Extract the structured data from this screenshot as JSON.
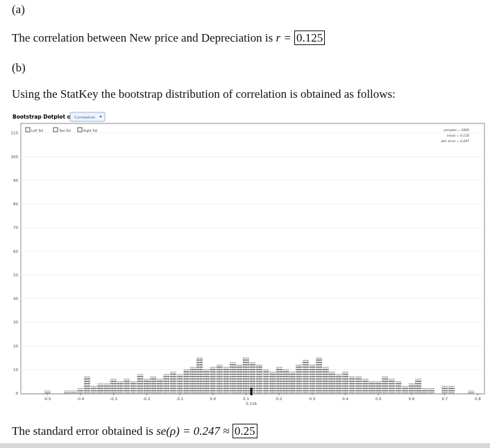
{
  "part_a": {
    "label": "(a)",
    "text": "The correlation between New price and Depreciation is",
    "symbol": "r =",
    "answer": "0.125"
  },
  "part_b": {
    "label": "(b)",
    "text": "Using the StatKey the bootstrap distribution of correlation is obtained as follows:"
  },
  "chart_data": {
    "type": "dotplot",
    "title": "Bootstrap Dotplot of",
    "dropdown": "Correlation",
    "tails": [
      "Left Tail",
      "Two-Tail",
      "Right Tail"
    ],
    "stats": [
      "samples = 1000",
      "mean = 0.116",
      "std. error = 0.247"
    ],
    "color": "#3a3a3a",
    "x": [
      -0.5,
      -0.48,
      -0.46,
      -0.44,
      -0.42,
      -0.4,
      -0.38,
      -0.36,
      -0.34,
      -0.32,
      -0.3,
      -0.28,
      -0.26,
      -0.24,
      -0.22,
      -0.2,
      -0.18,
      -0.16,
      -0.14,
      -0.12,
      -0.1,
      -0.08,
      -0.06,
      -0.04,
      -0.02,
      0,
      0.02,
      0.04,
      0.06,
      0.08,
      0.1,
      0.12,
      0.14,
      0.16,
      0.18,
      0.2,
      0.22,
      0.24,
      0.26,
      0.28,
      0.3,
      0.32,
      0.34,
      0.36,
      0.38,
      0.4,
      0.42,
      0.44,
      0.46,
      0.48,
      0.5,
      0.52,
      0.54,
      0.56,
      0.58,
      0.6,
      0.62,
      0.64,
      0.66,
      0.68,
      0.7,
      0.72,
      0.74,
      0.76,
      0.78
    ],
    "values": [
      1,
      0,
      0,
      1,
      1,
      2,
      7,
      3,
      4,
      4,
      6,
      5,
      6,
      5,
      8,
      6,
      7,
      6,
      8,
      9,
      8,
      10,
      11,
      15,
      10,
      11,
      12,
      11,
      13,
      12,
      15,
      13,
      12,
      10,
      9,
      11,
      10,
      9,
      12,
      14,
      12,
      15,
      11,
      9,
      8,
      9,
      7,
      7,
      6,
      5,
      5,
      7,
      6,
      5,
      3,
      4,
      6,
      2,
      2,
      0,
      3,
      3,
      0,
      0,
      1
    ],
    "xlim": [
      -0.58,
      0.82
    ],
    "ylim": [
      0,
      114
    ],
    "xticks": [
      -0.5,
      -0.4,
      -0.3,
      -0.2,
      -0.1,
      {
        "value": 0,
        "label": "0.0"
      },
      0.1,
      0.2,
      0.3,
      0.4,
      0.5,
      0.6,
      0.7,
      0.8
    ],
    "yticks": [
      0,
      10,
      20,
      30,
      40,
      50,
      60,
      70,
      80,
      90,
      100,
      110
    ],
    "marker": 0.116,
    "grid": true
  },
  "conclusion": {
    "text": "The standard error obtained is",
    "formula": "se(ρ) = 0.247 ≈",
    "answer": "0.25"
  }
}
